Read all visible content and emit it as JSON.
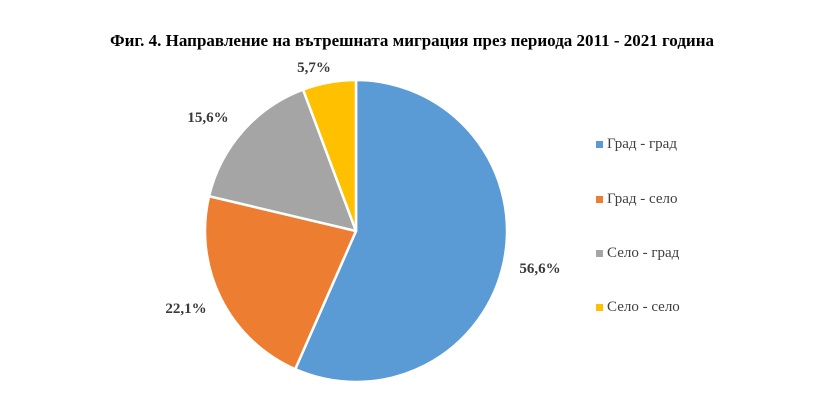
{
  "chart_data": {
    "type": "pie",
    "title": "Фиг. 4. Направление на вътрешната миграция през периода 2011 - 2021 година",
    "labels": [
      "Град - град",
      "Град - село",
      "Село - град",
      "Село - село"
    ],
    "values": [
      56.6,
      22.1,
      15.6,
      5.7
    ],
    "value_labels": [
      "56,6%",
      "22,1%",
      "15,6%",
      "5,7%"
    ],
    "unit": "%",
    "colors": [
      "#5B9BD5",
      "#ED7D31",
      "#A5A5A5",
      "#FFC000"
    ],
    "start_angle": "12 o'clock",
    "direction": "clockwise",
    "legend_position": "right"
  }
}
